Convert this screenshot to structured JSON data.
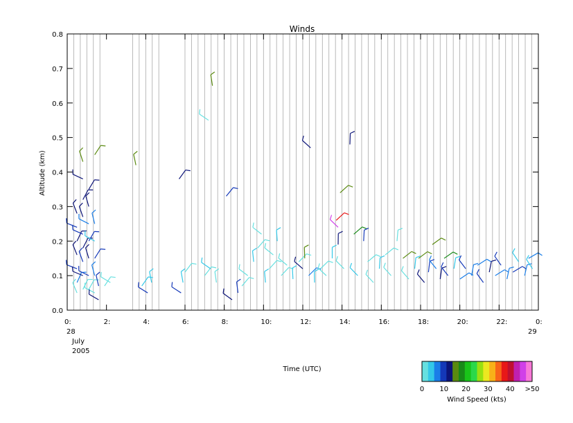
{
  "chart_data": {
    "type": "scatter",
    "title": "Winds",
    "xlabel": "Time (UTC)",
    "ylabel": "Altitude (km)",
    "xlim": [
      0,
      24
    ],
    "ylim": [
      0,
      0.8
    ],
    "grid": "vertical profile lines every 20 min",
    "x_ticks": [
      {
        "value": 0,
        "label": "0:"
      },
      {
        "value": 2,
        "label": "2:"
      },
      {
        "value": 4,
        "label": "4:"
      },
      {
        "value": 6,
        "label": "6:"
      },
      {
        "value": 8,
        "label": "8:"
      },
      {
        "value": 10,
        "label": "10:"
      },
      {
        "value": 12,
        "label": "12:"
      },
      {
        "value": 14,
        "label": "14:"
      },
      {
        "value": 16,
        "label": "16:"
      },
      {
        "value": 18,
        "label": "18:"
      },
      {
        "value": 20,
        "label": "20:"
      },
      {
        "value": 22,
        "label": "22:"
      },
      {
        "value": 24,
        "label": "0:"
      }
    ],
    "date_start": [
      "28",
      "July",
      "2005"
    ],
    "date_end": "29",
    "y_ticks": [
      "0.0",
      "0.1",
      "0.2",
      "0.3",
      "0.4",
      "0.5",
      "0.6",
      "0.7",
      "0.8"
    ],
    "colorbar": {
      "label": "Wind Speed (kts)",
      "tick_labels": [
        {
          "value": 0,
          "label": "0"
        },
        {
          "value": 10,
          "label": "10"
        },
        {
          "value": 20,
          "label": "20"
        },
        {
          "value": 30,
          "label": "30"
        },
        {
          "value": 40,
          "label": "40"
        },
        {
          "value": 50,
          "label": ">50"
        }
      ],
      "colors": [
        "#66e0e0",
        "#33c8e8",
        "#1a7ee8",
        "#1438b8",
        "#0c1478",
        "#5a8a10",
        "#188a18",
        "#19c419",
        "#2ad84a",
        "#98e010",
        "#ece820",
        "#f8b018",
        "#f86418",
        "#e81818",
        "#c01030",
        "#c020b0",
        "#d040e8",
        "#f878d8"
      ]
    },
    "series": [
      {
        "values": [
          [
            0.5,
            0.05,
            "#66e0e0"
          ],
          [
            0.5,
            0.08,
            "#1a7ee8"
          ],
          [
            0.5,
            0.12,
            "#1438b8"
          ],
          [
            0.5,
            0.16,
            "#0c1478"
          ],
          [
            0.5,
            0.2,
            "#0c1478"
          ],
          [
            0.5,
            0.24,
            "#1438b8"
          ],
          [
            0.5,
            0.28,
            "#0c1478"
          ],
          [
            0.8,
            0.06,
            "#66e0e0"
          ],
          [
            0.8,
            0.1,
            "#0c1478"
          ],
          [
            0.8,
            0.14,
            "#1438b8"
          ],
          [
            0.8,
            0.18,
            "#0c1478"
          ],
          [
            0.8,
            0.22,
            "#1438b8"
          ],
          [
            0.8,
            0.27,
            "#0c1478"
          ],
          [
            0.8,
            0.32,
            "#0c1478"
          ],
          [
            0.8,
            0.38,
            "#0c1478"
          ],
          [
            0.8,
            0.43,
            "#5a8a10"
          ],
          [
            1.1,
            0.06,
            "#66e0e0"
          ],
          [
            1.1,
            0.1,
            "#1438b8"
          ],
          [
            1.1,
            0.15,
            "#0c1478"
          ],
          [
            1.1,
            0.2,
            "#1438b8"
          ],
          [
            1.1,
            0.25,
            "#1a7ee8"
          ],
          [
            1.1,
            0.3,
            "#0c1478"
          ],
          [
            1.1,
            0.35,
            "#0c1478"
          ],
          [
            1.4,
            0.05,
            "#66e0e0"
          ],
          [
            1.4,
            0.1,
            "#1a7ee8"
          ],
          [
            1.4,
            0.15,
            "#1438b8"
          ],
          [
            1.4,
            0.2,
            "#33c8e8"
          ],
          [
            1.4,
            0.25,
            "#1a7ee8"
          ],
          [
            1.4,
            0.45,
            "#5a8a10"
          ],
          [
            1.6,
            0.03,
            "#0c1478"
          ],
          [
            1.6,
            0.07,
            "#1438b8"
          ],
          [
            1.9,
            0.07,
            "#66e0e0"
          ],
          [
            2.2,
            0.08,
            "#66e0e0"
          ]
        ]
      },
      {
        "values": [
          [
            3.5,
            0.42,
            "#5a8a10"
          ],
          [
            3.8,
            0.07,
            "#33c8e8"
          ],
          [
            4.1,
            0.05,
            "#1438b8"
          ],
          [
            4.3,
            0.08,
            "#33c8e8"
          ],
          [
            5.7,
            0.38,
            "#0c1478"
          ],
          [
            5.8,
            0.05,
            "#1438b8"
          ],
          [
            5.9,
            0.08,
            "#33c8e8"
          ],
          [
            6.0,
            0.11,
            "#66e0e0"
          ],
          [
            7.2,
            0.55,
            "#66e0e0"
          ],
          [
            7.4,
            0.65,
            "#5a8a10"
          ],
          [
            7.0,
            0.1,
            "#66e0e0"
          ],
          [
            7.3,
            0.12,
            "#33c8e8"
          ],
          [
            7.6,
            0.08,
            "#66e0e0"
          ],
          [
            8.1,
            0.33,
            "#1438b8"
          ],
          [
            8.4,
            0.03,
            "#0c1478"
          ],
          [
            8.7,
            0.05,
            "#1438b8"
          ],
          [
            8.9,
            0.07,
            "#66e0e0"
          ]
        ]
      },
      {
        "values": [
          [
            9.2,
            0.1,
            "#66e0e0"
          ],
          [
            9.5,
            0.14,
            "#33c8e8"
          ],
          [
            9.7,
            0.18,
            "#66e0e0"
          ],
          [
            9.9,
            0.22,
            "#66e0e0"
          ],
          [
            10.1,
            0.08,
            "#33c8e8"
          ],
          [
            10.3,
            0.12,
            "#66e0e0"
          ],
          [
            10.5,
            0.16,
            "#66e0e0"
          ],
          [
            10.7,
            0.2,
            "#33c8e8"
          ],
          [
            10.9,
            0.1,
            "#66e0e0"
          ],
          [
            11.2,
            0.13,
            "#66e0e0"
          ],
          [
            11.5,
            0.09,
            "#33c8e8"
          ],
          [
            11.8,
            0.14,
            "#66e0e0"
          ],
          [
            12.0,
            0.12,
            "#0c1478"
          ],
          [
            12.1,
            0.15,
            "#5a8a10"
          ],
          [
            12.3,
            0.1,
            "#1a7ee8"
          ],
          [
            12.4,
            0.47,
            "#0c1478"
          ],
          [
            12.6,
            0.08,
            "#33c8e8"
          ],
          [
            12.9,
            0.12,
            "#66e0e0"
          ],
          [
            13.2,
            0.1,
            "#66e0e0"
          ],
          [
            13.5,
            0.15,
            "#33c8e8"
          ],
          [
            13.7,
            0.26,
            "#e81818"
          ],
          [
            13.8,
            0.24,
            "#d040e8"
          ],
          [
            13.8,
            0.19,
            "#0c1478"
          ],
          [
            13.9,
            0.34,
            "#5a8a10"
          ],
          [
            14.1,
            0.12,
            "#66e0e0"
          ],
          [
            14.4,
            0.48,
            "#0c1478"
          ],
          [
            14.6,
            0.22,
            "#188a18"
          ],
          [
            14.8,
            0.1,
            "#33c8e8"
          ],
          [
            15.1,
            0.2,
            "#1438b8"
          ],
          [
            15.3,
            0.14,
            "#66e0e0"
          ],
          [
            15.6,
            0.08,
            "#66e0e0"
          ],
          [
            15.9,
            0.12,
            "#33c8e8"
          ],
          [
            16.2,
            0.16,
            "#66e0e0"
          ],
          [
            16.5,
            0.1,
            "#66e0e0"
          ],
          [
            16.8,
            0.2,
            "#66e0e0"
          ],
          [
            17.1,
            0.15,
            "#5a8a10"
          ],
          [
            17.4,
            0.09,
            "#66e0e0"
          ],
          [
            17.7,
            0.12,
            "#33c8e8"
          ]
        ]
      },
      {
        "values": [
          [
            17.9,
            0.15,
            "#5a8a10"
          ],
          [
            18.2,
            0.08,
            "#0c1478"
          ],
          [
            18.4,
            0.11,
            "#1438b8"
          ],
          [
            18.6,
            0.19,
            "#5a8a10"
          ],
          [
            18.8,
            0.12,
            "#1a7ee8"
          ],
          [
            19.0,
            0.09,
            "#0c1478"
          ],
          [
            19.2,
            0.15,
            "#188a18"
          ],
          [
            19.4,
            0.1,
            "#1438b8"
          ],
          [
            19.7,
            0.12,
            "#33c8e8"
          ],
          [
            20.0,
            0.09,
            "#1a7ee8"
          ],
          [
            20.3,
            0.12,
            "#1438b8"
          ],
          [
            20.6,
            0.1,
            "#1a7ee8"
          ],
          [
            20.9,
            0.13,
            "#1a7ee8"
          ],
          [
            21.2,
            0.08,
            "#1438b8"
          ],
          [
            21.5,
            0.11,
            "#0c1478"
          ],
          [
            21.8,
            0.1,
            "#1a7ee8"
          ],
          [
            22.1,
            0.13,
            "#1438b8"
          ],
          [
            22.4,
            0.09,
            "#1a7ee8"
          ],
          [
            22.7,
            0.11,
            "#1438b8"
          ],
          [
            23.0,
            0.14,
            "#33c8e8"
          ],
          [
            23.3,
            0.1,
            "#1a7ee8"
          ],
          [
            23.5,
            0.15,
            "#1a7ee8"
          ],
          [
            23.7,
            0.12,
            "#33c8e8"
          ]
        ]
      }
    ]
  }
}
